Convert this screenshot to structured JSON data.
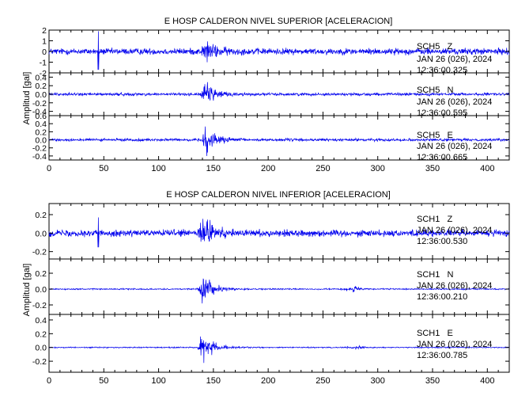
{
  "chart_data": [
    {
      "type": "line",
      "title": "E HOSP CALDERON NIVEL SUPERIOR [ACELERACION]",
      "ylabel": "Amplitud [gal]",
      "xlabel": "",
      "xlim": [
        0,
        420
      ],
      "x_ticks": [
        "0",
        "50",
        "100",
        "150",
        "200",
        "250",
        "300",
        "350",
        "400"
      ],
      "grid": false,
      "series_color": "#0000ee",
      "panels": [
        {
          "channel": "SCH5   Z",
          "date": "JAN 26 (026), 2024",
          "time": "12:36:00.325",
          "ylim": [
            -2,
            2
          ],
          "y_ticks": [
            "2",
            "1",
            "0",
            "-1",
            "-2"
          ],
          "noise": 0.45,
          "peak": 1.3,
          "peak_time": 143,
          "spike_time": 45,
          "spike": 1.9,
          "late_event": 0
        },
        {
          "channel": "SCH5   N",
          "date": "JAN 26 (026), 2024",
          "time": "12:36:00.595",
          "ylim": [
            -0.5,
            0.5
          ],
          "y_ticks": [
            "0.4",
            "0.2",
            "0.0",
            "-0.2",
            "-0.4"
          ],
          "noise": 0.05,
          "peak": 0.38,
          "peak_time": 143,
          "spike_time": 0,
          "spike": 0,
          "late_event": 0
        },
        {
          "channel": "SCH5   E",
          "date": "JAN 26 (026), 2024",
          "time": "12:36:00.665",
          "ylim": [
            -0.5,
            0.6
          ],
          "y_ticks": [
            "0.6",
            "0.4",
            "0.2",
            "0.0",
            "-0.2",
            "-0.4"
          ],
          "noise": 0.05,
          "peak": 0.45,
          "peak_time": 143,
          "spike_time": 0,
          "spike": 0,
          "late_event": 0
        }
      ]
    },
    {
      "type": "line",
      "title": "E HOSP CALDERON NIVEL INFERIOR [ACELERACION]",
      "ylabel": "Amplitud [gal]",
      "xlabel": "",
      "xlim": [
        0,
        420
      ],
      "x_ticks": [
        "0",
        "50",
        "100",
        "150",
        "200",
        "250",
        "300",
        "350",
        "400"
      ],
      "grid": false,
      "series_color": "#0000ee",
      "panels": [
        {
          "channel": "SCH1   Z",
          "date": "JAN 26 (026), 2024",
          "time": "12:36:00.530",
          "ylim": [
            -0.28,
            0.32
          ],
          "y_ticks": [
            "0.2",
            "0.0",
            "-0.2"
          ],
          "noise": 0.055,
          "peak": 0.28,
          "peak_time": 140,
          "spike_time": 45,
          "spike": 0.17,
          "late_event": 0
        },
        {
          "channel": "SCH1   N",
          "date": "JAN 26 (026), 2024",
          "time": "12:36:00.210",
          "ylim": [
            -0.32,
            0.38
          ],
          "y_ticks": [
            "0.2",
            "0.0",
            "-0.2"
          ],
          "noise": 0.012,
          "peak": 0.3,
          "peak_time": 140,
          "spike_time": 0,
          "spike": 0,
          "late_event": 0.04
        },
        {
          "channel": "SCH1   E",
          "date": "JAN 26 (026), 2024",
          "time": "12:36:00.785",
          "ylim": [
            -0.36,
            0.48
          ],
          "y_ticks": [
            "0.4",
            "0.2",
            "0.0",
            "-0.2"
          ],
          "noise": 0.012,
          "peak": 0.34,
          "peak_time": 140,
          "spike_time": 0,
          "spike": 0,
          "late_event": 0.03
        }
      ]
    }
  ]
}
